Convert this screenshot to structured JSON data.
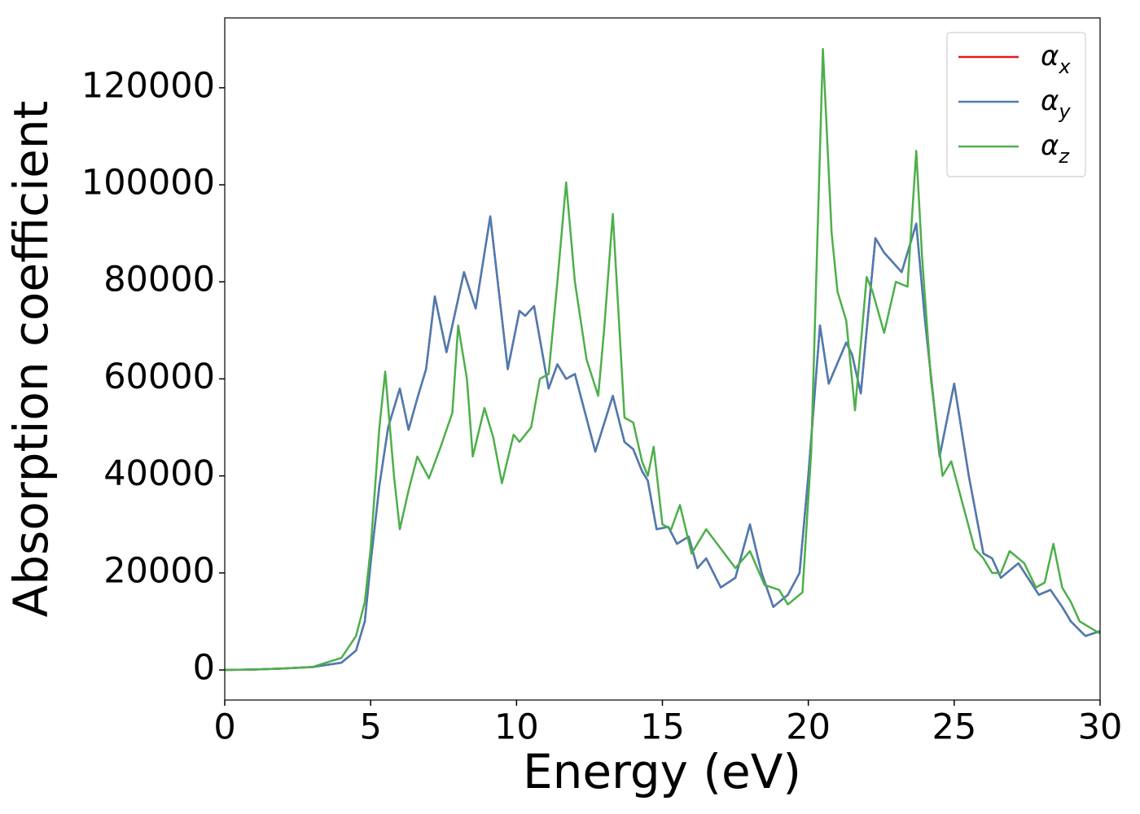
{
  "chart_data": {
    "type": "line",
    "xlabel": "Energy (eV)",
    "ylabel": "Absorption coefficient",
    "xlim": [
      0,
      30
    ],
    "ylim": [
      -6200,
      134400
    ],
    "xticks": [
      0,
      5,
      10,
      15,
      20,
      25,
      30
    ],
    "yticks": [
      0,
      20000,
      40000,
      60000,
      80000,
      100000,
      120000
    ],
    "legend": "upper right",
    "series": [
      {
        "name": "αx",
        "color": "#e41a1c",
        "x": [
          0,
          1,
          2,
          3,
          4,
          4.5,
          4.8,
          5,
          5.3,
          5.6,
          6,
          6.3,
          6.6,
          6.9,
          7.2,
          7.6,
          8.2,
          8.6,
          9.1,
          9.7,
          10.1,
          10.3,
          10.6,
          11.1,
          11.4,
          11.7,
          12,
          12.7,
          13.3,
          13.7,
          14,
          14.3,
          14.5,
          14.8,
          15.2,
          15.5,
          15.9,
          16.2,
          16.5,
          17,
          17.5,
          18,
          18.4,
          18.8,
          19.3,
          19.7,
          20,
          20.4,
          20.7,
          21.3,
          21.5,
          21.8,
          22,
          22.3,
          22.6,
          22.9,
          23.2,
          23.7,
          24,
          24.5,
          25,
          25.5,
          26,
          26.3,
          26.6,
          27.2,
          27.9,
          28.3,
          28.7,
          29,
          29.5,
          30
        ],
        "values": [
          0,
          100,
          300,
          600,
          1500,
          4000,
          10000,
          22000,
          38000,
          50000,
          58000,
          49500,
          56000,
          62000,
          77000,
          65500,
          82000,
          74500,
          93500,
          62000,
          74000,
          73000,
          75000,
          58000,
          63000,
          60000,
          61000,
          45000,
          56500,
          47000,
          45500,
          41000,
          39000,
          29000,
          29500,
          26000,
          27500,
          21000,
          23000,
          17000,
          19000,
          30000,
          20000,
          13000,
          15500,
          20000,
          40000,
          71000,
          59000,
          67500,
          65000,
          57000,
          70000,
          89000,
          86000,
          84000,
          82000,
          92000,
          72000,
          44000,
          59000,
          40000,
          24000,
          23000,
          19000,
          22000,
          15500,
          16500,
          13000,
          10000,
          7000,
          8000
        ]
      },
      {
        "name": "αy",
        "color": "#4a7db3",
        "x": [
          0,
          1,
          2,
          3,
          4,
          4.5,
          4.8,
          5,
          5.3,
          5.6,
          6,
          6.3,
          6.6,
          6.9,
          7.2,
          7.6,
          8.2,
          8.6,
          9.1,
          9.7,
          10.1,
          10.3,
          10.6,
          11.1,
          11.4,
          11.7,
          12,
          12.7,
          13.3,
          13.7,
          14,
          14.3,
          14.5,
          14.8,
          15.2,
          15.5,
          15.9,
          16.2,
          16.5,
          17,
          17.5,
          18,
          18.4,
          18.8,
          19.3,
          19.7,
          20,
          20.4,
          20.7,
          21.3,
          21.5,
          21.8,
          22,
          22.3,
          22.6,
          22.9,
          23.2,
          23.7,
          24,
          24.5,
          25,
          25.5,
          26,
          26.3,
          26.6,
          27.2,
          27.9,
          28.3,
          28.7,
          29,
          29.5,
          30
        ],
        "values": [
          0,
          100,
          300,
          600,
          1500,
          4000,
          10000,
          22000,
          38000,
          50000,
          58000,
          49500,
          56000,
          62000,
          77000,
          65500,
          82000,
          74500,
          93500,
          62000,
          74000,
          73000,
          75000,
          58000,
          63000,
          60000,
          61000,
          45000,
          56500,
          47000,
          45500,
          41000,
          39000,
          29000,
          29500,
          26000,
          27500,
          21000,
          23000,
          17000,
          19000,
          30000,
          20000,
          13000,
          15500,
          20000,
          40000,
          71000,
          59000,
          67500,
          65000,
          57000,
          70000,
          89000,
          86000,
          84000,
          82000,
          92000,
          72000,
          44000,
          59000,
          40000,
          24000,
          23000,
          19000,
          22000,
          15500,
          16500,
          13000,
          10000,
          7000,
          8000
        ]
      },
      {
        "name": "αz",
        "color": "#4daf4a",
        "x": [
          0,
          1,
          2,
          3,
          4,
          4.5,
          4.8,
          5,
          5.3,
          5.5,
          5.8,
          6,
          6.3,
          6.6,
          7,
          7.4,
          7.8,
          8,
          8.3,
          8.5,
          8.9,
          9.2,
          9.5,
          9.9,
          10.1,
          10.5,
          10.8,
          11.1,
          11.4,
          11.7,
          12,
          12.4,
          12.8,
          13,
          13.3,
          13.7,
          14,
          14.3,
          14.5,
          14.7,
          15,
          15.3,
          15.6,
          16,
          16.5,
          17,
          17.5,
          18,
          18.5,
          19,
          19.3,
          19.8,
          20.1,
          20.5,
          20.8,
          21,
          21.3,
          21.6,
          22,
          22.2,
          22.6,
          23,
          23.4,
          23.7,
          23.9,
          24.2,
          24.6,
          24.9,
          25.3,
          25.7,
          26,
          26.3,
          26.6,
          26.9,
          27.4,
          27.8,
          28.1,
          28.4,
          28.7,
          29,
          29.3,
          30
        ],
        "values": [
          0,
          100,
          300,
          600,
          2500,
          7000,
          14000,
          25000,
          50000,
          61500,
          40000,
          29000,
          37000,
          44000,
          39500,
          46000,
          53000,
          71000,
          60000,
          44000,
          54000,
          48000,
          38500,
          48500,
          47000,
          50000,
          60000,
          61000,
          80000,
          100500,
          80000,
          64000,
          56500,
          70000,
          94000,
          52000,
          51000,
          43000,
          40000,
          46000,
          30000,
          29000,
          34000,
          24000,
          29000,
          25000,
          21000,
          24500,
          17500,
          16500,
          13500,
          16000,
          45000,
          128000,
          90000,
          78000,
          72000,
          53500,
          81000,
          78000,
          69500,
          80000,
          79000,
          107000,
          85000,
          60000,
          40000,
          43000,
          34000,
          25000,
          23000,
          20000,
          20000,
          24500,
          22000,
          17000,
          18000,
          26000,
          17000,
          14000,
          10000,
          7500
        ]
      }
    ]
  }
}
